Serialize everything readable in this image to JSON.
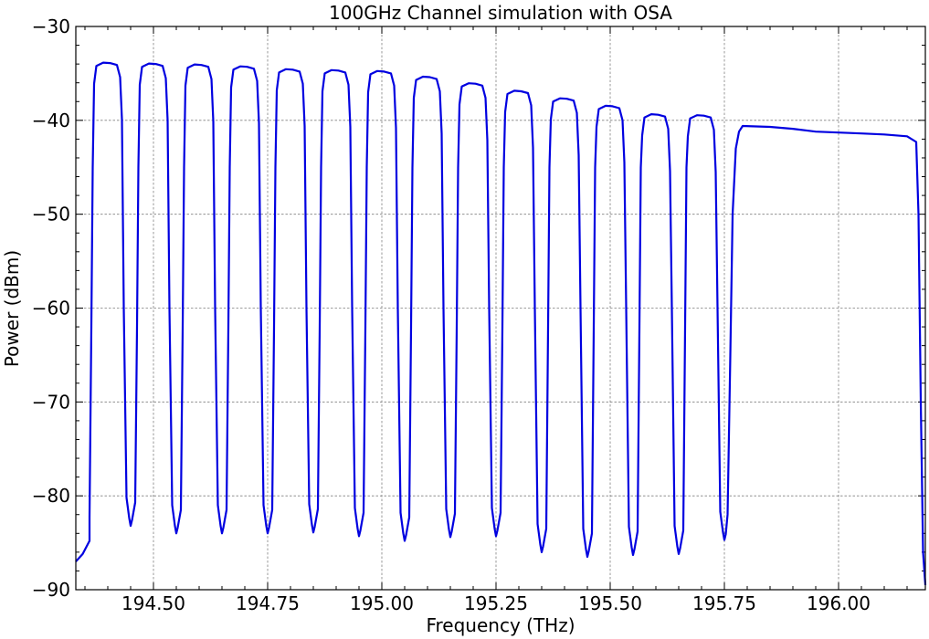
{
  "chart_data": {
    "type": "line",
    "title": "100GHz Channel simulation with OSA",
    "xlabel": "Frequency (THz)",
    "ylabel": "Power (dBm)",
    "xlim": [
      194.33,
      196.19
    ],
    "ylim": [
      -90,
      -30
    ],
    "xticks": [
      194.5,
      194.75,
      195.0,
      195.25,
      195.5,
      195.75,
      196.0
    ],
    "xtick_labels": [
      "194.50",
      "194.75",
      "195.00",
      "195.25",
      "195.50",
      "195.75",
      "196.00"
    ],
    "yticks": [
      -90,
      -80,
      -70,
      -60,
      -50,
      -40,
      -30
    ],
    "ytick_labels": [
      "−90",
      "−80",
      "−70",
      "−60",
      "−50",
      "−40",
      "−30"
    ],
    "grid": true,
    "tick_direction": "in",
    "legend": "none",
    "series": [
      {
        "color": "#0000e0",
        "channels": [
          {
            "center": 194.4,
            "peak": -33.9
          },
          {
            "center": 194.5,
            "peak": -34.0
          },
          {
            "center": 194.6,
            "peak": -34.1
          },
          {
            "center": 194.7,
            "peak": -34.3
          },
          {
            "center": 194.8,
            "peak": -34.6
          },
          {
            "center": 194.9,
            "peak": -34.7
          },
          {
            "center": 195.0,
            "peak": -34.8
          },
          {
            "center": 195.1,
            "peak": -35.4
          },
          {
            "center": 195.2,
            "peak": -36.1
          },
          {
            "center": 195.3,
            "peak": -36.9
          },
          {
            "center": 195.4,
            "peak": -37.7
          },
          {
            "center": 195.5,
            "peak": -38.5
          },
          {
            "center": 195.6,
            "peak": -39.4
          },
          {
            "center": 195.7,
            "peak": -39.5
          }
        ],
        "troughs": [
          {
            "x": 194.45,
            "y": -83.2
          },
          {
            "x": 194.55,
            "y": -84.0
          },
          {
            "x": 194.65,
            "y": -84.0
          },
          {
            "x": 194.75,
            "y": -84.0
          },
          {
            "x": 194.85,
            "y": -83.9
          },
          {
            "x": 194.95,
            "y": -84.3
          },
          {
            "x": 195.05,
            "y": -84.8
          },
          {
            "x": 195.15,
            "y": -84.4
          },
          {
            "x": 195.25,
            "y": -84.3
          },
          {
            "x": 195.35,
            "y": -86.0
          },
          {
            "x": 195.45,
            "y": -86.5
          },
          {
            "x": 195.55,
            "y": -86.3
          },
          {
            "x": 195.65,
            "y": -86.2
          },
          {
            "x": 195.75,
            "y": -84.7
          }
        ],
        "left_edge": [
          [
            194.33,
            -87.0
          ],
          [
            194.345,
            -86.2
          ],
          [
            194.36,
            -84.8
          ]
        ],
        "plateau": [
          [
            195.79,
            -40.6
          ],
          [
            195.85,
            -40.7
          ],
          [
            195.9,
            -40.9
          ],
          [
            195.95,
            -41.2
          ],
          [
            196.0,
            -41.3
          ],
          [
            196.05,
            -41.4
          ],
          [
            196.1,
            -41.5
          ],
          [
            196.15,
            -41.7
          ],
          [
            196.17,
            -42.3
          ]
        ],
        "right_edge": [
          [
            196.175,
            -50
          ],
          [
            196.18,
            -70
          ],
          [
            196.185,
            -86
          ],
          [
            196.19,
            -89.5
          ]
        ]
      }
    ]
  }
}
